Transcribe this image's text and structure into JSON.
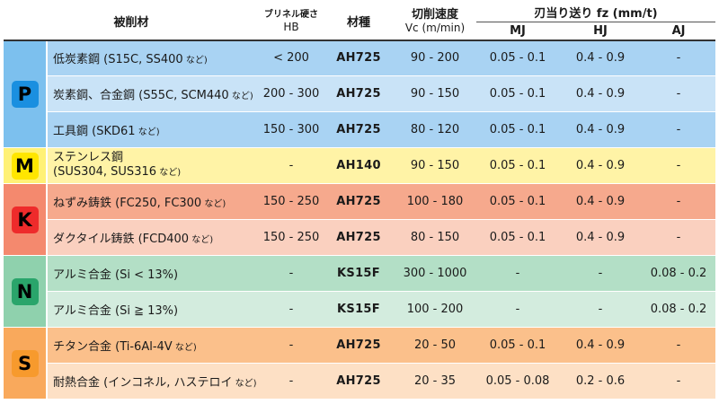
{
  "header": {
    "material": "被削材",
    "hardness_top": "ブリネル硬さ",
    "hardness_unit": "HB",
    "grade": "材種",
    "speed_title": "切削速度",
    "speed_unit": "Vc (m/min)",
    "feed_title": "刃当り送り fz (mm/t)",
    "feed_cols": [
      "MJ",
      "HJ",
      "AJ"
    ]
  },
  "colors": {
    "P": {
      "badge": "#1a8fe0",
      "row_a": "#a9d3f3",
      "row_b": "#c9e3f7",
      "label_cell": "#7cc0ee"
    },
    "M": {
      "badge": "#ffe600",
      "row": "#fff3a6",
      "label_cell": "#fff176"
    },
    "K": {
      "badge": "#ee2b2b",
      "row_a": "#f6a98d",
      "row_b": "#fad0bf",
      "label_cell": "#f4896e"
    },
    "N": {
      "badge": "#2aa56b",
      "row_a": "#b3dfc6",
      "row_b": "#d3ecde",
      "label_cell": "#8fd1ad"
    },
    "S": {
      "badge": "#f79a2d",
      "row_a": "#fbc08b",
      "row_b": "#fde0c5",
      "label_cell": "#f9a95c"
    }
  },
  "groups": [
    {
      "letter": "P",
      "rows": [
        {
          "name": "低炭素鋼 (S15C, SS400",
          "note": " など)",
          "hb": "< 200",
          "grade": "AH725",
          "vc": "90 - 200",
          "mj": "0.05 - 0.1",
          "hj": "0.4 - 0.9",
          "aj": "-"
        },
        {
          "name": "炭素鋼、合金鋼 (S55C, SCM440",
          "note": " など)",
          "hb": "200 - 300",
          "grade": "AH725",
          "vc": "90 - 150",
          "mj": "0.05 - 0.1",
          "hj": "0.4 - 0.9",
          "aj": "-"
        },
        {
          "name": "工具鋼 (SKD61",
          "note": " など)",
          "hb": "150 - 300",
          "grade": "AH725",
          "vc": "80 - 120",
          "mj": "0.05 - 0.1",
          "hj": "0.4 - 0.9",
          "aj": "-"
        }
      ]
    },
    {
      "letter": "M",
      "rows": [
        {
          "name": "ステンレス鋼",
          "name2": "(SUS304, SUS316",
          "note": " など)",
          "hb": "-",
          "grade": "AH140",
          "vc": "90 - 150",
          "mj": "0.05 - 0.1",
          "hj": "0.4  - 0.9",
          "aj": "-"
        }
      ]
    },
    {
      "letter": "K",
      "rows": [
        {
          "name": "ねずみ鋳鉄 (FC250, FC300",
          "note": " など)",
          "hb": "150 - 250",
          "grade": "AH725",
          "vc": "100 - 180",
          "mj": "0.05 - 0.1",
          "hj": "0.4  - 0.9",
          "aj": "-"
        },
        {
          "name": "ダクタイル鋳鉄 (FCD400",
          "note": " など)",
          "hb": "150 - 250",
          "grade": "AH725",
          "vc": "80 - 150",
          "mj": "0.05 - 0.1",
          "hj": "0.4  - 0.9",
          "aj": "-"
        }
      ]
    },
    {
      "letter": "N",
      "rows": [
        {
          "name": "アルミ合金 (Si < 13%)",
          "note": "",
          "hb": "-",
          "grade": "KS15F",
          "vc": "300 - 1000",
          "mj": "-",
          "hj": "-",
          "aj": "0.08 - 0.2"
        },
        {
          "name": "アルミ合金 (Si ≧ 13%)",
          "note": "",
          "hb": "-",
          "grade": "KS15F",
          "vc": "100 - 200",
          "mj": "-",
          "hj": "-",
          "aj": "0.08 - 0.2"
        }
      ]
    },
    {
      "letter": "S",
      "rows": [
        {
          "name": "チタン合金 (Ti-6Al-4V",
          "note": " など)",
          "hb": "-",
          "grade": "AH725",
          "vc": "20 - 50",
          "mj": "0.05  - 0.1",
          "hj": "0.4 - 0.9",
          "aj": "-"
        },
        {
          "name": "耐熱合金 (インコネル, ハステロイ",
          "note": " など)",
          "hb": "-",
          "grade": "AH725",
          "vc": "20 - 35",
          "mj": "0.05 - 0.08",
          "hj": "0.2 - 0.6",
          "aj": "-"
        }
      ]
    }
  ]
}
